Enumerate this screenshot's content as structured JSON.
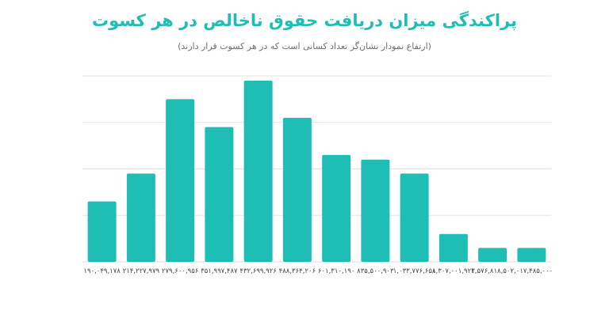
{
  "title": "پراکندگی میزان دریافت حقوق ناخالص در هر کسوت",
  "subtitle": "(ارتفاع نمودار نشان‌گر تعداد کسانی است که در هر کسوت قرار دارند)",
  "chart_data": {
    "type": "bar",
    "title": "پراکندگی میزان دریافت حقوق ناخالص در هر کسوت",
    "subtitle": "(ارتفاع نمودار نشان‌گر تعداد کسانی است که در هر کسوت قرار دارند)",
    "xlabel": "",
    "ylabel": "",
    "categories": [
      "۱۹۰,۰۴۹,۱۷۸",
      "۲۱۴,۲۲۷,۹۷۹",
      "۲۷۹,۶۰۰,۹۵۶",
      "۳۵۱,۹۹۷,۴۸۷",
      "۴۳۲,۶۹۹,۹۲۶",
      "۴۸۸,۳۶۴,۲۰۶",
      "۶۰۱,۳۱۰,۱۹۰",
      "۸۳۵,۵۰۰,۹۰۳",
      "۱,۰۳۳,۷۷۶,۶۵۸",
      "۱,۳۰۷,۰۰۱,۹۲۳",
      "۱,۵۷۶,۸۱۸,۵۰۰",
      "۲,۰۱۷,۴۸۵,۰۰۰"
    ],
    "values": [
      13,
      19,
      35,
      29,
      39,
      31,
      23,
      22,
      19,
      6,
      3,
      3
    ],
    "ylim": [
      0,
      40
    ],
    "y_ticks": [
      0,
      10,
      20,
      30,
      40
    ],
    "y_tick_labels_shown": false,
    "grid": true,
    "colors": {
      "bar": "#1fbeb5",
      "grid": "#e4e4e4",
      "title": "#1fbeb5"
    }
  }
}
